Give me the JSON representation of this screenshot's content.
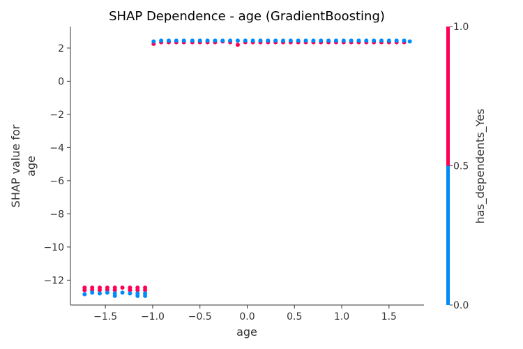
{
  "chart_data": {
    "type": "scatter",
    "title": "SHAP Dependence - age (GradientBoosting)",
    "xlabel": "age",
    "ylabel_lines": [
      "SHAP value for",
      "age"
    ],
    "xlim": [
      -1.87,
      1.87
    ],
    "ylim": [
      -13.5,
      3.3
    ],
    "x_ticks": [
      -1.5,
      -1.0,
      -0.5,
      0.0,
      0.5,
      1.0,
      1.5
    ],
    "x_tick_labels": [
      "−1.5",
      "−1.0",
      "−0.5",
      "0.0",
      "0.5",
      "1.0",
      "1.5"
    ],
    "y_ticks": [
      2,
      0,
      -2,
      -4,
      -6,
      -8,
      -10,
      -12
    ],
    "y_tick_labels": [
      "2",
      "0",
      "−2",
      "−4",
      "−6",
      "−8",
      "−10",
      "−12"
    ],
    "grid": false,
    "colorbar": {
      "label": "has_dependents_Yes",
      "ticks": [
        0.0,
        0.5,
        1.0
      ],
      "tick_labels": [
        "0.0",
        "0.5",
        "1.0"
      ],
      "low_color": "#008bfb",
      "high_color": "#ff0052"
    },
    "series": [
      {
        "color": "#ff0052",
        "points": [
          [
            -1.72,
            -12.45
          ],
          [
            -1.72,
            -12.6
          ],
          [
            -1.64,
            -12.45
          ],
          [
            -1.64,
            -12.6
          ],
          [
            -1.56,
            -12.45
          ],
          [
            -1.56,
            -12.6
          ],
          [
            -1.48,
            -12.45
          ],
          [
            -1.48,
            -12.6
          ],
          [
            -1.4,
            -12.45
          ],
          [
            -1.4,
            -12.6
          ],
          [
            -1.32,
            -12.45
          ],
          [
            -1.24,
            -12.45
          ],
          [
            -1.24,
            -12.6
          ],
          [
            -1.16,
            -12.45
          ],
          [
            -1.16,
            -12.6
          ],
          [
            -1.08,
            -12.45
          ],
          [
            -1.08,
            -12.6
          ],
          [
            -0.99,
            2.25
          ],
          [
            -0.91,
            2.35
          ],
          [
            -0.83,
            2.35
          ],
          [
            -0.75,
            2.35
          ],
          [
            -0.67,
            2.35
          ],
          [
            -0.58,
            2.35
          ],
          [
            -0.5,
            2.35
          ],
          [
            -0.42,
            2.35
          ],
          [
            -0.34,
            2.35
          ],
          [
            -0.26,
            2.4
          ],
          [
            -0.18,
            2.35
          ],
          [
            -0.1,
            2.2
          ],
          [
            -0.02,
            2.35
          ],
          [
            0.06,
            2.35
          ],
          [
            0.14,
            2.35
          ],
          [
            0.22,
            2.35
          ],
          [
            0.3,
            2.35
          ],
          [
            0.38,
            2.35
          ],
          [
            0.46,
            2.35
          ],
          [
            0.54,
            2.35
          ],
          [
            0.62,
            2.35
          ],
          [
            0.7,
            2.35
          ],
          [
            0.78,
            2.35
          ],
          [
            0.86,
            2.35
          ],
          [
            0.94,
            2.35
          ],
          [
            1.02,
            2.35
          ],
          [
            1.1,
            2.35
          ],
          [
            1.18,
            2.35
          ],
          [
            1.26,
            2.35
          ],
          [
            1.34,
            2.35
          ],
          [
            1.42,
            2.35
          ],
          [
            1.5,
            2.35
          ],
          [
            1.58,
            2.35
          ],
          [
            1.66,
            2.35
          ]
        ]
      },
      {
        "color": "#008bfb",
        "points": [
          [
            -1.72,
            -12.85
          ],
          [
            -1.64,
            -12.75
          ],
          [
            -1.56,
            -12.8
          ],
          [
            -1.48,
            -12.75
          ],
          [
            -1.4,
            -12.8
          ],
          [
            -1.4,
            -12.95
          ],
          [
            -1.32,
            -12.75
          ],
          [
            -1.24,
            -12.8
          ],
          [
            -1.16,
            -12.8
          ],
          [
            -1.16,
            -12.95
          ],
          [
            -1.08,
            -12.8
          ],
          [
            -1.08,
            -12.95
          ],
          [
            -0.99,
            2.4
          ],
          [
            -0.91,
            2.45
          ],
          [
            -0.83,
            2.45
          ],
          [
            -0.75,
            2.45
          ],
          [
            -0.67,
            2.45
          ],
          [
            -0.58,
            2.45
          ],
          [
            -0.5,
            2.45
          ],
          [
            -0.42,
            2.45
          ],
          [
            -0.34,
            2.45
          ],
          [
            -0.26,
            2.45
          ],
          [
            -0.18,
            2.45
          ],
          [
            -0.1,
            2.45
          ],
          [
            -0.02,
            2.45
          ],
          [
            0.06,
            2.45
          ],
          [
            0.14,
            2.45
          ],
          [
            0.22,
            2.45
          ],
          [
            0.3,
            2.45
          ],
          [
            0.38,
            2.45
          ],
          [
            0.46,
            2.45
          ],
          [
            0.54,
            2.45
          ],
          [
            0.62,
            2.45
          ],
          [
            0.7,
            2.45
          ],
          [
            0.78,
            2.45
          ],
          [
            0.86,
            2.45
          ],
          [
            0.94,
            2.45
          ],
          [
            1.02,
            2.45
          ],
          [
            1.1,
            2.45
          ],
          [
            1.18,
            2.45
          ],
          [
            1.26,
            2.45
          ],
          [
            1.34,
            2.45
          ],
          [
            1.42,
            2.45
          ],
          [
            1.5,
            2.45
          ],
          [
            1.58,
            2.45
          ],
          [
            1.66,
            2.45
          ],
          [
            1.72,
            2.4
          ]
        ]
      }
    ]
  }
}
